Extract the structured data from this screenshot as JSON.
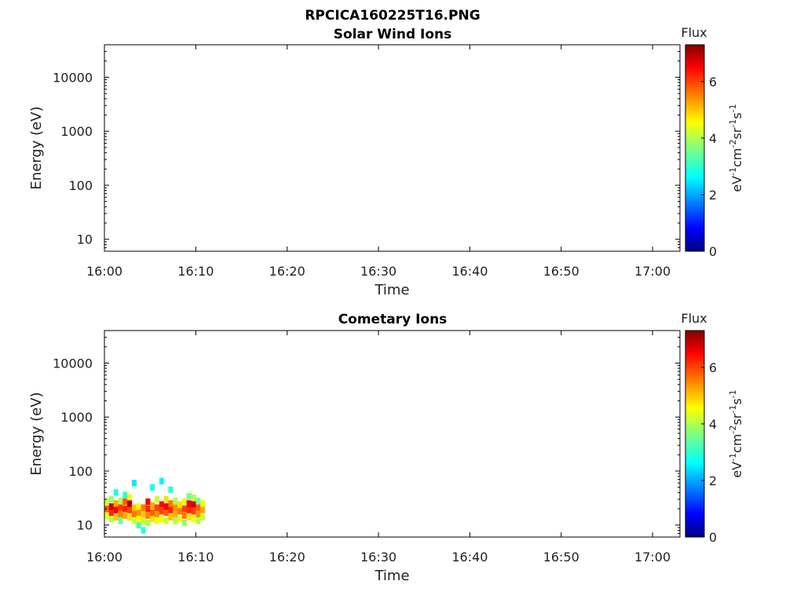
{
  "figure": {
    "title": "RPCICA160225T16.PNG"
  },
  "chart_data": [
    {
      "type": "heatmap",
      "title": "Solar Wind Ions",
      "xlabel": "Time",
      "ylabel": "Energy (eV)",
      "x_ticks": [
        "16:00",
        "16:10",
        "16:20",
        "16:30",
        "16:40",
        "16:50",
        "17:00"
      ],
      "xlim": [
        "16:00",
        "17:03"
      ],
      "y_scale": "log",
      "y_ticks": [
        10,
        100,
        1000,
        10000
      ],
      "y_tick_labels": [
        "10",
        "100",
        "1000",
        "10000"
      ],
      "ylim": [
        6,
        40000
      ],
      "colorbar": {
        "title": "Flux",
        "label": "eV-1cm-2sr-1s-1",
        "label_parts": [
          "eV",
          "-1",
          "cm",
          "-2",
          "sr",
          "-1",
          "s",
          "-1"
        ],
        "ticks": [
          0,
          2,
          4,
          6
        ],
        "tick_labels": [
          "0",
          "2",
          "4",
          "6"
        ],
        "range": [
          0,
          7.3
        ],
        "colormap": "jet"
      },
      "cells": []
    },
    {
      "type": "heatmap",
      "title": "Cometary Ions",
      "xlabel": "Time",
      "ylabel": "Energy (eV)",
      "x_ticks": [
        "16:00",
        "16:10",
        "16:20",
        "16:30",
        "16:40",
        "16:50",
        "17:00"
      ],
      "xlim": [
        "16:00",
        "17:03"
      ],
      "y_scale": "log",
      "y_ticks": [
        10,
        100,
        1000,
        10000
      ],
      "y_tick_labels": [
        "10",
        "100",
        "1000",
        "10000"
      ],
      "ylim": [
        6,
        40000
      ],
      "colorbar": {
        "title": "Flux",
        "label": "eV-1cm-2sr-1s-1",
        "label_parts": [
          "eV",
          "-1",
          "cm",
          "-2",
          "sr",
          "-1",
          "s",
          "-1"
        ],
        "ticks": [
          0,
          2,
          4,
          6
        ],
        "tick_labels": [
          "0",
          "2",
          "4",
          "6"
        ],
        "range": [
          0,
          7.3
        ],
        "colormap": "jet"
      },
      "data_extent": {
        "time_range": [
          "16:00",
          "16:11"
        ],
        "energy_range": [
          6,
          70
        ],
        "peak_energy": 20,
        "peak_flux": 7
      },
      "cells": [
        {
          "t": 0.0,
          "e": 15,
          "f": 4.5
        },
        {
          "t": 0.0,
          "e": 20,
          "f": 5.8
        },
        {
          "t": 0.0,
          "e": 27,
          "f": 4.2
        },
        {
          "t": 0.5,
          "e": 13,
          "f": 4.0
        },
        {
          "t": 0.5,
          "e": 17,
          "f": 6.2
        },
        {
          "t": 0.5,
          "e": 22,
          "f": 6.8
        },
        {
          "t": 0.5,
          "e": 30,
          "f": 3.8
        },
        {
          "t": 1.0,
          "e": 14,
          "f": 5.0
        },
        {
          "t": 1.0,
          "e": 19,
          "f": 6.5
        },
        {
          "t": 1.0,
          "e": 25,
          "f": 5.2
        },
        {
          "t": 1.0,
          "e": 40,
          "f": 2.8
        },
        {
          "t": 1.5,
          "e": 12,
          "f": 3.5
        },
        {
          "t": 1.5,
          "e": 16,
          "f": 5.5
        },
        {
          "t": 1.5,
          "e": 21,
          "f": 6.0
        },
        {
          "t": 1.5,
          "e": 28,
          "f": 4.0
        },
        {
          "t": 2.0,
          "e": 15,
          "f": 5.2
        },
        {
          "t": 2.0,
          "e": 20,
          "f": 6.2
        },
        {
          "t": 2.0,
          "e": 27,
          "f": 5.8
        },
        {
          "t": 2.0,
          "e": 36,
          "f": 3.0
        },
        {
          "t": 2.5,
          "e": 14,
          "f": 4.8
        },
        {
          "t": 2.5,
          "e": 19,
          "f": 6.0
        },
        {
          "t": 2.5,
          "e": 25,
          "f": 7.0
        },
        {
          "t": 2.5,
          "e": 33,
          "f": 4.5
        },
        {
          "t": 3.0,
          "e": 12,
          "f": 4.2
        },
        {
          "t": 3.0,
          "e": 16,
          "f": 5.6
        },
        {
          "t": 3.0,
          "e": 21,
          "f": 5.0
        },
        {
          "t": 3.0,
          "e": 60,
          "f": 2.5
        },
        {
          "t": 3.5,
          "e": 10,
          "f": 3.2
        },
        {
          "t": 3.5,
          "e": 13,
          "f": 4.5
        },
        {
          "t": 3.5,
          "e": 17,
          "f": 5.4
        },
        {
          "t": 3.5,
          "e": 22,
          "f": 4.6
        },
        {
          "t": 4.0,
          "e": 8,
          "f": 3.0
        },
        {
          "t": 4.0,
          "e": 12,
          "f": 4.2
        },
        {
          "t": 4.0,
          "e": 16,
          "f": 5.0
        },
        {
          "t": 4.0,
          "e": 21,
          "f": 5.6
        },
        {
          "t": 4.5,
          "e": 11,
          "f": 4.0
        },
        {
          "t": 4.5,
          "e": 15,
          "f": 5.5
        },
        {
          "t": 4.5,
          "e": 20,
          "f": 6.2
        },
        {
          "t": 4.5,
          "e": 27,
          "f": 6.6
        },
        {
          "t": 5.0,
          "e": 13,
          "f": 4.8
        },
        {
          "t": 5.0,
          "e": 17,
          "f": 5.8
        },
        {
          "t": 5.0,
          "e": 23,
          "f": 5.2
        },
        {
          "t": 5.0,
          "e": 50,
          "f": 2.8
        },
        {
          "t": 5.5,
          "e": 12,
          "f": 4.4
        },
        {
          "t": 5.5,
          "e": 16,
          "f": 5.4
        },
        {
          "t": 5.5,
          "e": 21,
          "f": 6.0
        },
        {
          "t": 5.5,
          "e": 30,
          "f": 4.2
        },
        {
          "t": 6.0,
          "e": 13,
          "f": 4.6
        },
        {
          "t": 6.0,
          "e": 18,
          "f": 6.0
        },
        {
          "t": 6.0,
          "e": 24,
          "f": 6.4
        },
        {
          "t": 6.0,
          "e": 65,
          "f": 2.6
        },
        {
          "t": 6.5,
          "e": 12,
          "f": 4.2
        },
        {
          "t": 6.5,
          "e": 17,
          "f": 5.8
        },
        {
          "t": 6.5,
          "e": 22,
          "f": 6.6
        },
        {
          "t": 6.5,
          "e": 30,
          "f": 4.8
        },
        {
          "t": 7.0,
          "e": 14,
          "f": 5.0
        },
        {
          "t": 7.0,
          "e": 19,
          "f": 6.2
        },
        {
          "t": 7.0,
          "e": 25,
          "f": 5.6
        },
        {
          "t": 7.0,
          "e": 45,
          "f": 3.0
        },
        {
          "t": 7.5,
          "e": 12,
          "f": 4.0
        },
        {
          "t": 7.5,
          "e": 16,
          "f": 5.2
        },
        {
          "t": 7.5,
          "e": 21,
          "f": 5.4
        },
        {
          "t": 7.5,
          "e": 28,
          "f": 4.0
        },
        {
          "t": 8.0,
          "e": 13,
          "f": 4.4
        },
        {
          "t": 8.0,
          "e": 18,
          "f": 5.6
        },
        {
          "t": 8.0,
          "e": 24,
          "f": 4.8
        },
        {
          "t": 8.5,
          "e": 11,
          "f": 3.8
        },
        {
          "t": 8.5,
          "e": 15,
          "f": 5.6
        },
        {
          "t": 8.5,
          "e": 20,
          "f": 6.0
        },
        {
          "t": 8.5,
          "e": 27,
          "f": 4.4
        },
        {
          "t": 9.0,
          "e": 14,
          "f": 4.8
        },
        {
          "t": 9.0,
          "e": 19,
          "f": 6.2
        },
        {
          "t": 9.0,
          "e": 25,
          "f": 6.6
        },
        {
          "t": 9.0,
          "e": 34,
          "f": 3.6
        },
        {
          "t": 9.5,
          "e": 13,
          "f": 4.6
        },
        {
          "t": 9.5,
          "e": 18,
          "f": 6.0
        },
        {
          "t": 9.5,
          "e": 24,
          "f": 6.8
        },
        {
          "t": 9.5,
          "e": 32,
          "f": 4.0
        },
        {
          "t": 10.0,
          "e": 12,
          "f": 4.0
        },
        {
          "t": 10.0,
          "e": 16,
          "f": 5.4
        },
        {
          "t": 10.0,
          "e": 21,
          "f": 5.8
        },
        {
          "t": 10.0,
          "e": 28,
          "f": 3.6
        },
        {
          "t": 10.5,
          "e": 14,
          "f": 4.2
        },
        {
          "t": 10.5,
          "e": 19,
          "f": 5.2
        },
        {
          "t": 10.5,
          "e": 25,
          "f": 4.4
        }
      ]
    }
  ]
}
